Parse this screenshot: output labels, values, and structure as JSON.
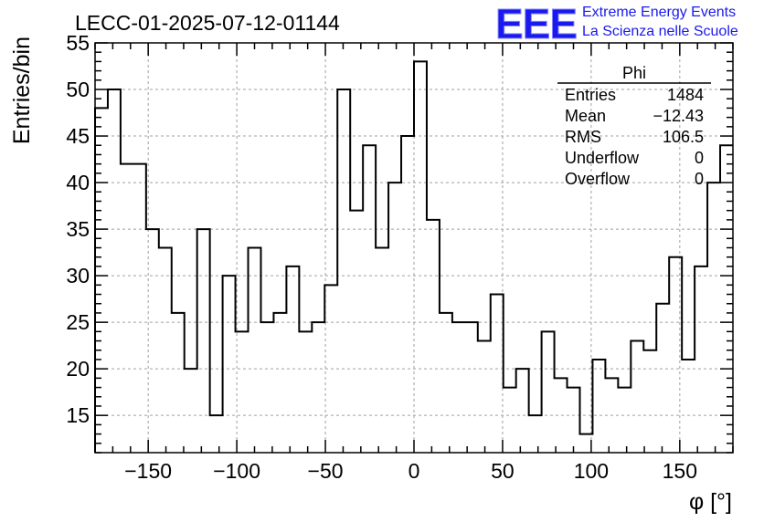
{
  "chart_data": {
    "type": "bar",
    "style": "step-histogram",
    "title": "LECC-01-2025-07-12-01144",
    "xlabel": "φ [°]",
    "ylabel": "Entries/bin",
    "xlim": [
      -180,
      180
    ],
    "ylim": [
      11,
      55
    ],
    "x_ticks": [
      -150,
      -100,
      -50,
      0,
      50,
      100,
      150
    ],
    "x_tick_labels": [
      "−150",
      "−100",
      "−50",
      "0",
      "50",
      "100",
      "150"
    ],
    "y_ticks": [
      15,
      20,
      25,
      30,
      35,
      40,
      45,
      50,
      55
    ],
    "y_tick_labels": [
      "15",
      "20",
      "25",
      "30",
      "35",
      "40",
      "45",
      "50",
      "55"
    ],
    "grid": true,
    "bin_width": 7.2,
    "bin_edges_start": -180,
    "values": [
      48,
      50,
      42,
      42,
      35,
      33,
      26,
      20,
      35,
      15,
      30,
      24,
      33,
      25,
      26,
      31,
      24,
      25,
      29,
      50,
      37,
      44,
      33,
      40,
      45,
      53,
      36,
      26,
      25,
      25,
      23,
      28,
      18,
      20,
      15,
      24,
      19,
      18,
      13,
      21,
      19,
      18,
      23,
      22,
      27,
      32,
      21,
      31,
      40,
      44
    ],
    "line_color": "#000000"
  },
  "stats_box": {
    "title": "Phi",
    "rows": [
      {
        "label": "Entries",
        "value": "1484"
      },
      {
        "label": "Mean",
        "value": "−12.43"
      },
      {
        "label": "RMS",
        "value": "106.5"
      },
      {
        "label": "Underflow",
        "value": "0"
      },
      {
        "label": "Overflow",
        "value": "0"
      }
    ]
  },
  "logo": {
    "mark": "EEE",
    "line1": "Extreme Energy Events",
    "line2": "La Scienza nelle Scuole",
    "color": "#1a1aee"
  }
}
